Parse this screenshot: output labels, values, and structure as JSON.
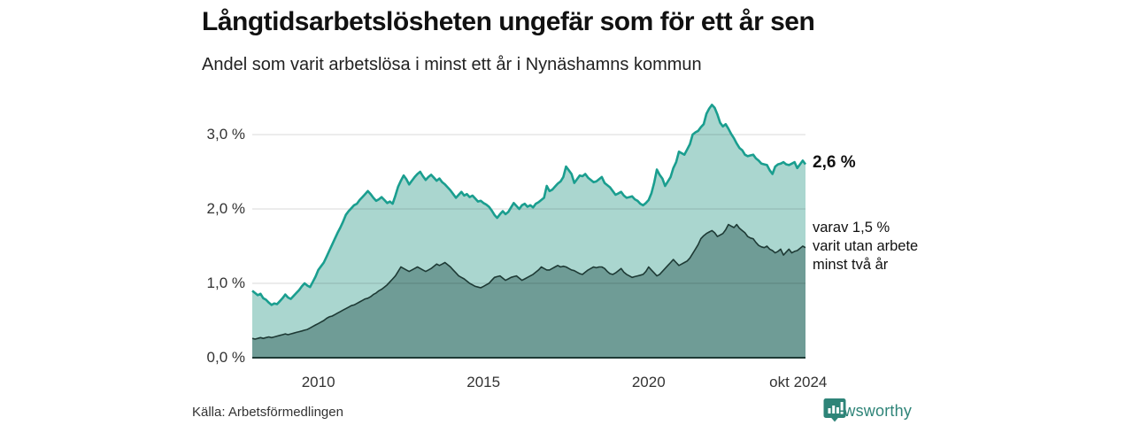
{
  "header": {
    "title": "Långtidsarbetslösheten ungefär som för ett år sen",
    "subtitle": "Andel som varit arbetslösa i minst ett år i Nynäshamns kommun"
  },
  "annotations": {
    "series1_end": "2,6 %",
    "series2_end_lines": [
      "varav 1,5 %",
      "varit utan arbete",
      "minst två år"
    ]
  },
  "footer": {
    "source": "Källa: Arbetsförmedlingen",
    "brand": "Newsworthy"
  },
  "colors": {
    "line1": "#1a9e8f",
    "fill1": "#aad6cf",
    "line2": "#1e3a35",
    "fill2": "#6f9c96",
    "axis": "#1e3a35",
    "grid": "rgba(0,0,0,0.15)",
    "brand_teal": "#2e8478"
  },
  "chart_data": {
    "type": "area",
    "title": "Långtidsarbetslösheten ungefär som för ett år sen",
    "subtitle": "Andel som varit arbetslösa i minst ett år i Nynäshamns kommun",
    "xlabel": "",
    "ylabel": "",
    "grid": true,
    "legend_position": "right-annotations",
    "xlim": [
      2008.0,
      2024.75
    ],
    "ylim": [
      0,
      3.55
    ],
    "x_start": 2008.0,
    "x_step": 0.0833,
    "x_unit": "decimal-year, monthly data Jan 2008 – Oct 2024",
    "xticks": [
      {
        "x": 2010.0,
        "label": "2010"
      },
      {
        "x": 2015.0,
        "label": "2015"
      },
      {
        "x": 2020.0,
        "label": "2020"
      },
      {
        "x": 2024.53,
        "label": "okt 2024"
      }
    ],
    "yticks": [
      {
        "v": 0,
        "label": "0,0 %"
      },
      {
        "v": 1,
        "label": "1,0 %"
      },
      {
        "v": 2,
        "label": "2,0 %"
      },
      {
        "v": 3,
        "label": "3,0 %"
      }
    ],
    "series": [
      {
        "name": "Andel arbetslösa minst ett år",
        "end_value": 2.6,
        "end_label": "2,6 %",
        "values": [
          0.9,
          0.87,
          0.84,
          0.86,
          0.8,
          0.78,
          0.74,
          0.71,
          0.73,
          0.72,
          0.76,
          0.8,
          0.85,
          0.81,
          0.79,
          0.83,
          0.87,
          0.91,
          0.96,
          1.0,
          0.97,
          0.95,
          1.02,
          1.09,
          1.18,
          1.23,
          1.28,
          1.36,
          1.44,
          1.52,
          1.6,
          1.68,
          1.75,
          1.83,
          1.92,
          1.97,
          2.01,
          2.05,
          2.07,
          2.12,
          2.16,
          2.2,
          2.24,
          2.2,
          2.15,
          2.11,
          2.13,
          2.16,
          2.12,
          2.08,
          2.1,
          2.07,
          2.18,
          2.3,
          2.38,
          2.45,
          2.4,
          2.33,
          2.38,
          2.43,
          2.47,
          2.5,
          2.44,
          2.39,
          2.43,
          2.46,
          2.42,
          2.38,
          2.41,
          2.36,
          2.33,
          2.29,
          2.25,
          2.2,
          2.15,
          2.19,
          2.23,
          2.18,
          2.2,
          2.16,
          2.18,
          2.14,
          2.1,
          2.11,
          2.08,
          2.06,
          2.03,
          1.98,
          1.92,
          1.88,
          1.93,
          1.97,
          1.93,
          1.96,
          2.02,
          2.08,
          2.04,
          2.0,
          2.05,
          2.07,
          2.03,
          2.05,
          2.02,
          2.07,
          2.09,
          2.12,
          2.15,
          2.31,
          2.24,
          2.26,
          2.3,
          2.34,
          2.37,
          2.43,
          2.57,
          2.52,
          2.47,
          2.35,
          2.4,
          2.45,
          2.44,
          2.47,
          2.42,
          2.39,
          2.36,
          2.37,
          2.4,
          2.43,
          2.35,
          2.32,
          2.29,
          2.24,
          2.19,
          2.21,
          2.23,
          2.18,
          2.15,
          2.16,
          2.17,
          2.13,
          2.11,
          2.07,
          2.05,
          2.08,
          2.12,
          2.21,
          2.35,
          2.53,
          2.46,
          2.41,
          2.31,
          2.37,
          2.43,
          2.55,
          2.63,
          2.77,
          2.75,
          2.73,
          2.8,
          2.87,
          3.0,
          3.03,
          3.05,
          3.1,
          3.14,
          3.28,
          3.35,
          3.4,
          3.36,
          3.27,
          3.16,
          3.11,
          3.14,
          3.08,
          3.01,
          2.95,
          2.88,
          2.82,
          2.79,
          2.73,
          2.71,
          2.72,
          2.73,
          2.68,
          2.65,
          2.61,
          2.6,
          2.59,
          2.52,
          2.47,
          2.57,
          2.6,
          2.61,
          2.63,
          2.6,
          2.59,
          2.61,
          2.63,
          2.55,
          2.6,
          2.65,
          2.6
        ]
      },
      {
        "name": "varav utan arbete minst två år",
        "end_value": 1.5,
        "end_label": "varav 1,5 % varit utan arbete minst två år",
        "values": [
          0.26,
          0.25,
          0.26,
          0.27,
          0.26,
          0.27,
          0.28,
          0.27,
          0.28,
          0.29,
          0.3,
          0.31,
          0.32,
          0.31,
          0.32,
          0.33,
          0.34,
          0.35,
          0.36,
          0.37,
          0.38,
          0.4,
          0.42,
          0.44,
          0.46,
          0.48,
          0.5,
          0.53,
          0.55,
          0.56,
          0.58,
          0.6,
          0.62,
          0.64,
          0.66,
          0.68,
          0.7,
          0.71,
          0.73,
          0.75,
          0.77,
          0.79,
          0.8,
          0.82,
          0.85,
          0.87,
          0.9,
          0.92,
          0.95,
          0.98,
          1.02,
          1.06,
          1.1,
          1.16,
          1.22,
          1.2,
          1.18,
          1.16,
          1.18,
          1.2,
          1.22,
          1.2,
          1.18,
          1.16,
          1.18,
          1.2,
          1.23,
          1.26,
          1.24,
          1.26,
          1.28,
          1.25,
          1.22,
          1.18,
          1.14,
          1.1,
          1.08,
          1.06,
          1.03,
          1.0,
          0.98,
          0.96,
          0.95,
          0.94,
          0.96,
          0.98,
          1.0,
          1.04,
          1.08,
          1.09,
          1.1,
          1.07,
          1.04,
          1.06,
          1.08,
          1.09,
          1.1,
          1.07,
          1.04,
          1.06,
          1.08,
          1.1,
          1.12,
          1.15,
          1.18,
          1.22,
          1.2,
          1.18,
          1.18,
          1.2,
          1.22,
          1.24,
          1.22,
          1.23,
          1.22,
          1.2,
          1.18,
          1.17,
          1.15,
          1.13,
          1.12,
          1.15,
          1.18,
          1.2,
          1.22,
          1.21,
          1.22,
          1.22,
          1.2,
          1.16,
          1.13,
          1.12,
          1.14,
          1.17,
          1.2,
          1.15,
          1.12,
          1.1,
          1.08,
          1.09,
          1.1,
          1.11,
          1.12,
          1.16,
          1.22,
          1.18,
          1.14,
          1.1,
          1.12,
          1.16,
          1.2,
          1.24,
          1.28,
          1.32,
          1.28,
          1.24,
          1.26,
          1.28,
          1.3,
          1.34,
          1.4,
          1.46,
          1.52,
          1.6,
          1.64,
          1.67,
          1.69,
          1.71,
          1.68,
          1.63,
          1.65,
          1.67,
          1.72,
          1.79,
          1.77,
          1.75,
          1.79,
          1.74,
          1.71,
          1.68,
          1.63,
          1.61,
          1.6,
          1.55,
          1.51,
          1.49,
          1.48,
          1.5,
          1.46,
          1.44,
          1.41,
          1.43,
          1.46,
          1.38,
          1.42,
          1.46,
          1.41,
          1.43,
          1.44,
          1.47,
          1.5,
          1.48
        ]
      }
    ]
  }
}
